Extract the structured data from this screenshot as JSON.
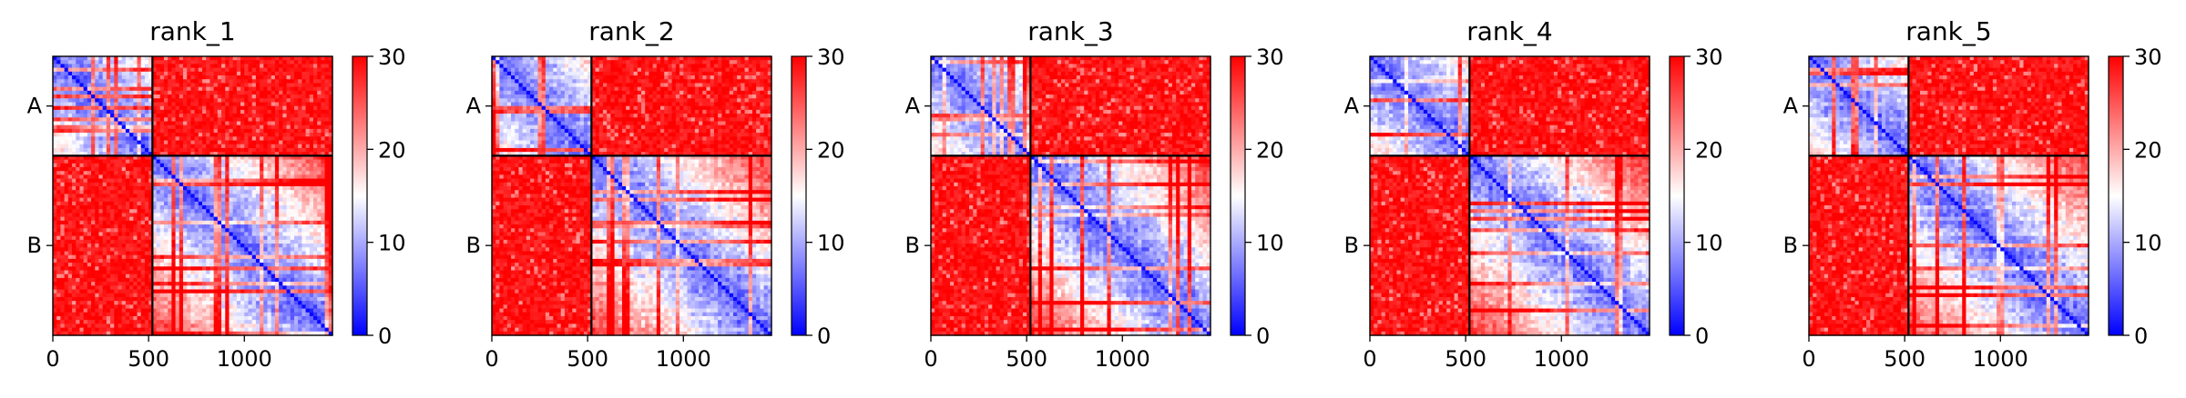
{
  "chart_data": [
    {
      "type": "heatmap",
      "title": "rank_1",
      "xticks": [
        0,
        500,
        1000
      ],
      "xlim": [
        0,
        1460
      ],
      "chain_boundary": 520,
      "ytick_labels": [
        "A",
        "B"
      ],
      "colorbar": {
        "min": 0,
        "max": 30,
        "ticks": [
          0,
          10,
          20,
          30
        ]
      }
    },
    {
      "type": "heatmap",
      "title": "rank_2",
      "xticks": [
        0,
        500,
        1000
      ],
      "xlim": [
        0,
        1460
      ],
      "chain_boundary": 520,
      "ytick_labels": [
        "A",
        "B"
      ],
      "colorbar": {
        "min": 0,
        "max": 30,
        "ticks": [
          0,
          10,
          20,
          30
        ]
      }
    },
    {
      "type": "heatmap",
      "title": "rank_3",
      "xticks": [
        0,
        500,
        1000
      ],
      "xlim": [
        0,
        1460
      ],
      "chain_boundary": 520,
      "ytick_labels": [
        "A",
        "B"
      ],
      "colorbar": {
        "min": 0,
        "max": 30,
        "ticks": [
          0,
          10,
          20,
          30
        ]
      }
    },
    {
      "type": "heatmap",
      "title": "rank_4",
      "xticks": [
        0,
        500,
        1000
      ],
      "xlim": [
        0,
        1460
      ],
      "chain_boundary": 520,
      "ytick_labels": [
        "A",
        "B"
      ],
      "colorbar": {
        "min": 0,
        "max": 30,
        "ticks": [
          0,
          10,
          20,
          30
        ]
      }
    },
    {
      "type": "heatmap",
      "title": "rank_5",
      "xticks": [
        0,
        500,
        1000
      ],
      "xlim": [
        0,
        1460
      ],
      "chain_boundary": 520,
      "ytick_labels": [
        "A",
        "B"
      ],
      "colorbar": {
        "min": 0,
        "max": 30,
        "ticks": [
          0,
          10,
          20,
          30
        ]
      }
    }
  ]
}
